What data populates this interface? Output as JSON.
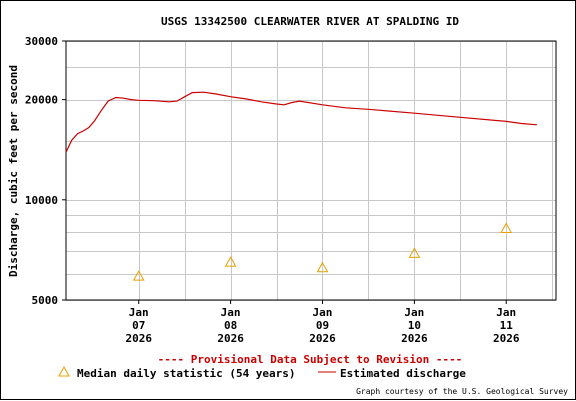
{
  "chart_data": {
    "type": "line",
    "title": "USGS 13342500 CLEARWATER RIVER AT SPALDING ID",
    "ylabel": "Discharge, cubic feet per second",
    "xlabel": "",
    "y_scale": "log",
    "ylim": [
      5000,
      30000
    ],
    "y_ticks": [
      {
        "value": 5000,
        "label": "5000"
      },
      {
        "value": 10000,
        "label": "10000"
      },
      {
        "value": 20000,
        "label": "20000"
      },
      {
        "value": 30000,
        "label": "30000"
      }
    ],
    "y_minor_gridlines": [
      6000,
      7000,
      8000,
      9000,
      15000,
      25000
    ],
    "xlim": [
      "2026-01-06 05:00",
      "2026-01-11 13:00"
    ],
    "x_ticks": [
      {
        "x": "2026-01-07 00:00",
        "lines": [
          "Jan",
          "07",
          "2026"
        ]
      },
      {
        "x": "2026-01-08 00:00",
        "lines": [
          "Jan",
          "08",
          "2026"
        ]
      },
      {
        "x": "2026-01-09 00:00",
        "lines": [
          "Jan",
          "09",
          "2026"
        ]
      },
      {
        "x": "2026-01-10 00:00",
        "lines": [
          "Jan",
          "10",
          "2026"
        ]
      },
      {
        "x": "2026-01-11 00:00",
        "lines": [
          "Jan",
          "11",
          "2026"
        ]
      }
    ],
    "grid": true,
    "legend_position": "bottom",
    "series": [
      {
        "name": "Estimated discharge",
        "color": "#cc0000",
        "style": "line",
        "points": [
          [
            "2026-01-06 05:00",
            13900
          ],
          [
            "2026-01-06 06:30",
            15100
          ],
          [
            "2026-01-06 08:00",
            15800
          ],
          [
            "2026-01-06 09:30",
            16100
          ],
          [
            "2026-01-06 11:00",
            16500
          ],
          [
            "2026-01-06 12:30",
            17300
          ],
          [
            "2026-01-06 14:00",
            18400
          ],
          [
            "2026-01-06 16:00",
            19800
          ],
          [
            "2026-01-06 18:00",
            20300
          ],
          [
            "2026-01-06 20:00",
            20200
          ],
          [
            "2026-01-06 22:00",
            20000
          ],
          [
            "2026-01-07 00:00",
            19900
          ],
          [
            "2026-01-07 04:00",
            19850
          ],
          [
            "2026-01-07 08:00",
            19700
          ],
          [
            "2026-01-07 10:00",
            19800
          ],
          [
            "2026-01-07 12:00",
            20400
          ],
          [
            "2026-01-07 14:00",
            21000
          ],
          [
            "2026-01-07 17:00",
            21050
          ],
          [
            "2026-01-07 20:00",
            20800
          ],
          [
            "2026-01-08 00:00",
            20400
          ],
          [
            "2026-01-08 04:00",
            20100
          ],
          [
            "2026-01-08 08:00",
            19700
          ],
          [
            "2026-01-08 12:00",
            19400
          ],
          [
            "2026-01-08 14:00",
            19300
          ],
          [
            "2026-01-08 16:00",
            19600
          ],
          [
            "2026-01-08 18:00",
            19800
          ],
          [
            "2026-01-09 00:00",
            19300
          ],
          [
            "2026-01-09 06:00",
            18900
          ],
          [
            "2026-01-09 12:00",
            18700
          ],
          [
            "2026-01-10 00:00",
            18200
          ],
          [
            "2026-01-10 12:00",
            17700
          ],
          [
            "2026-01-11 00:00",
            17200
          ],
          [
            "2026-01-11 04:00",
            16950
          ],
          [
            "2026-01-11 08:00",
            16800
          ]
        ]
      },
      {
        "name": "Median daily statistic (54 years)",
        "color": "#e8a000",
        "style": "triangle",
        "points": [
          [
            "2026-01-07 00:00",
            5900
          ],
          [
            "2026-01-08 00:00",
            6500
          ],
          [
            "2026-01-09 00:00",
            6250
          ],
          [
            "2026-01-10 00:00",
            6900
          ],
          [
            "2026-01-11 00:00",
            8200
          ]
        ]
      }
    ],
    "notice": "---- Provisional Data Subject to Revision ----",
    "legend": {
      "median_label": "Median daily statistic (54 years)",
      "discharge_label": "Estimated discharge"
    },
    "credit": "Graph courtesy of the U.S. Geological Survey"
  }
}
